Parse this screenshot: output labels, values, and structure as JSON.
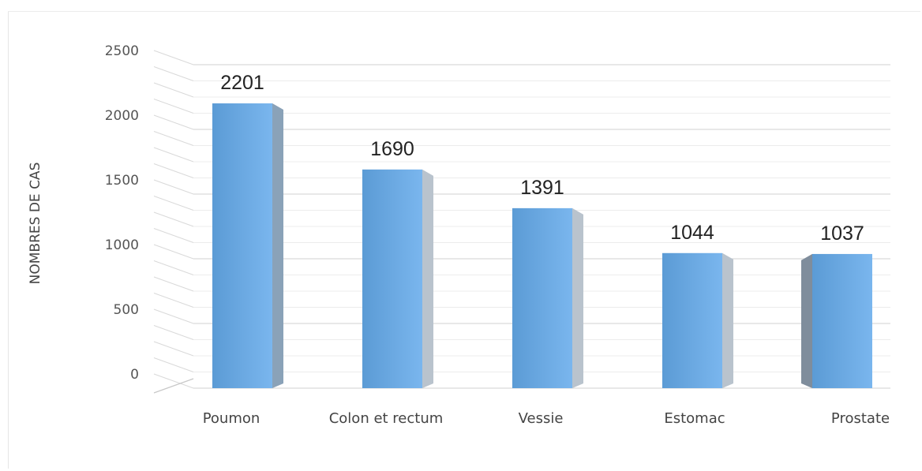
{
  "chart_data": {
    "type": "bar",
    "title": "",
    "xlabel": "",
    "ylabel": "NOMBRES DE CAS",
    "categories": [
      "Poumon",
      "Colon et rectum",
      "Vessie",
      "Estomac",
      "Prostate"
    ],
    "values": [
      2201,
      1690,
      1391,
      1044,
      1037
    ],
    "value_labels": [
      "2201",
      "1690",
      "1391",
      "1044",
      "1037"
    ],
    "ylim": [
      0,
      2500
    ],
    "yticks": [
      0,
      500,
      1000,
      1500,
      2000,
      2500
    ],
    "ytick_labels": [
      "0",
      "500",
      "1000",
      "1500",
      "2000",
      "2500"
    ],
    "grid": true,
    "legend": "none",
    "style": "3d-perspective-columns",
    "colors": {
      "bar_front_start": "#5b9bd5",
      "bar_front_end": "#7ab6ee",
      "bar_side": "#8aa2b8",
      "grid": "#d9d9d9",
      "floor": "#c8c8c8"
    }
  }
}
